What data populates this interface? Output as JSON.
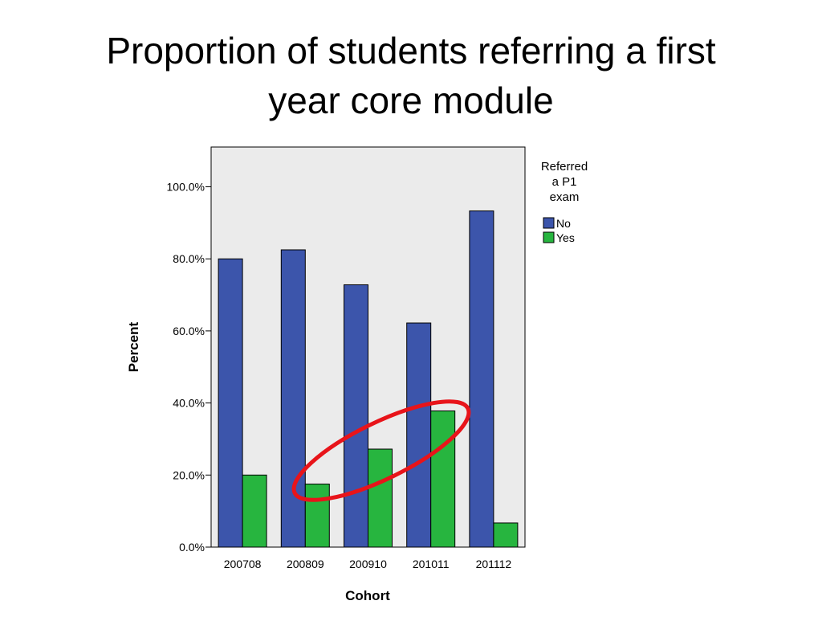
{
  "slide": {
    "title_lines": [
      "Proportion of students referring a first",
      "year core module"
    ]
  },
  "chart_data": {
    "type": "bar",
    "title": "",
    "xlabel": "Cohort",
    "ylabel": "Percent",
    "categories": [
      "200708",
      "200809",
      "200910",
      "201011",
      "201112"
    ],
    "series": [
      {
        "name": "No",
        "values": [
          80.0,
          82.5,
          72.8,
          62.2,
          93.3
        ],
        "color": "#3c55ab"
      },
      {
        "name": "Yes",
        "values": [
          20.0,
          17.5,
          27.2,
          37.8,
          6.7
        ],
        "color": "#27b53f"
      }
    ],
    "ylim": [
      0,
      110
    ],
    "y_ticks": [
      0,
      20,
      40,
      60,
      80,
      100
    ],
    "y_tick_labels": [
      "0.0%",
      "20.0%",
      "40.0%",
      "60.0%",
      "80.0%",
      "100.0%"
    ],
    "legend": {
      "title_lines": [
        "Referred",
        "a P1",
        "exam"
      ],
      "placement": "right"
    },
    "plot_background": "#ebebeb",
    "grid": false,
    "annotation": {
      "shape": "ellipse",
      "color": "#e8141a",
      "description_categories": [
        "200809",
        "200910",
        "201011"
      ]
    }
  }
}
